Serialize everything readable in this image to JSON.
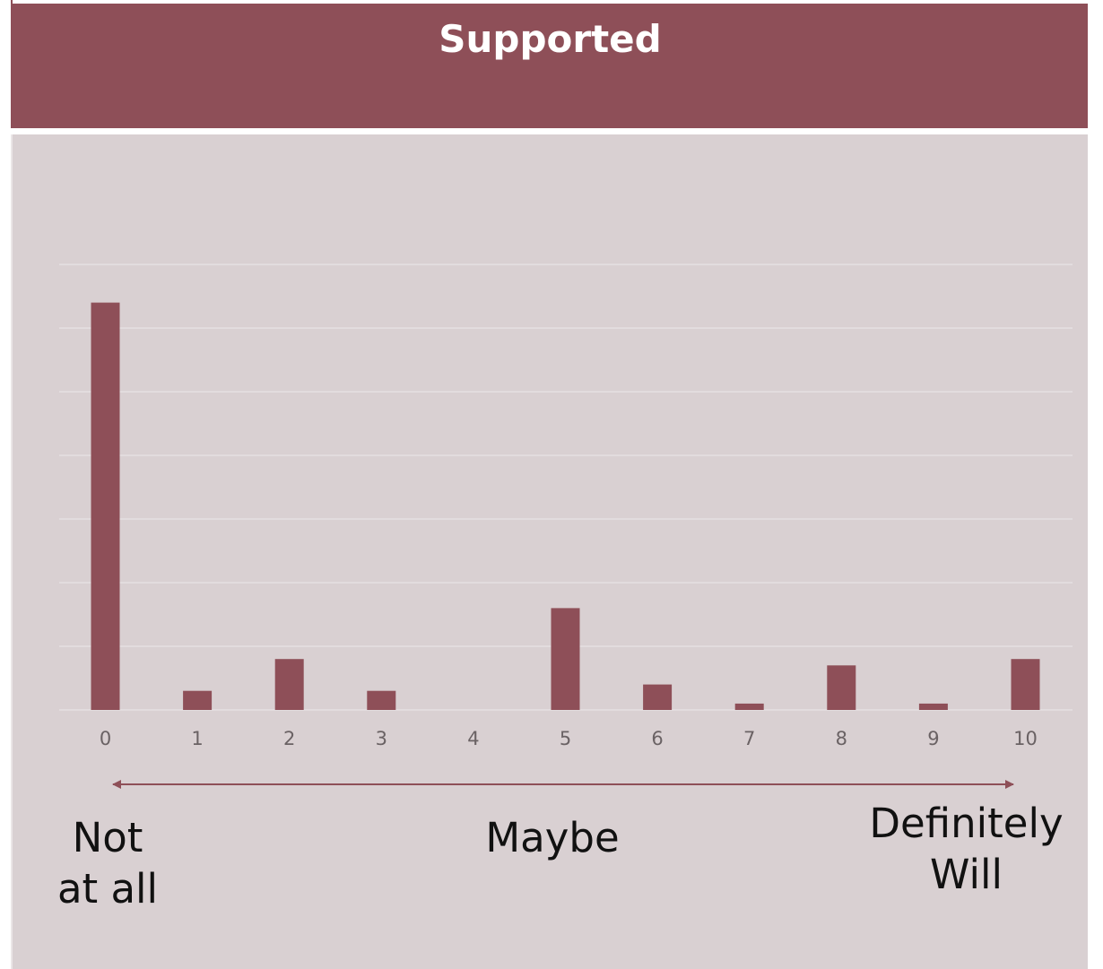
{
  "header": {
    "title": "Supported"
  },
  "colors": {
    "header": "#8e4f58",
    "bar": "#8e4f58",
    "panel": "#d9d0d2",
    "grid": "#e6dfe1"
  },
  "scale": {
    "left_label": "Not\nat all",
    "middle_label": "Maybe",
    "right_label": "Definitely\nWill"
  },
  "chart_data": {
    "type": "bar",
    "categories": [
      "0",
      "1",
      "2",
      "3",
      "4",
      "5",
      "6",
      "7",
      "8",
      "9",
      "10"
    ],
    "values": [
      64,
      3,
      8,
      3,
      0,
      16,
      4,
      1,
      7,
      1,
      8
    ],
    "title": "",
    "xlabel": "",
    "ylabel": "",
    "ylim": [
      0,
      70
    ],
    "grid": true,
    "y_axis_labels_shown": false
  }
}
